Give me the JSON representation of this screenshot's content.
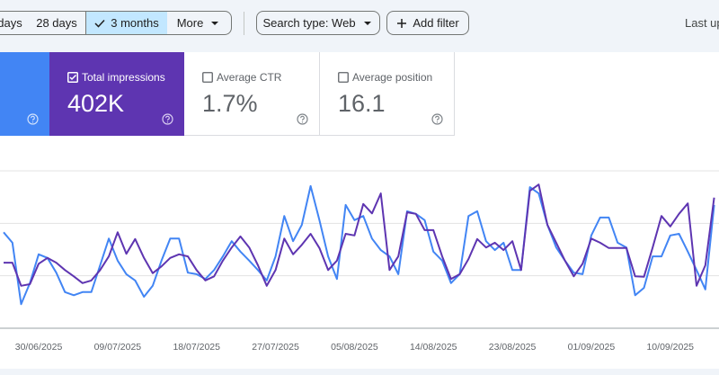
{
  "toolbar": {
    "date_buttons": [
      "days",
      "28 days",
      "3 months",
      "More"
    ],
    "search_type": "Search type: Web",
    "add_filter": "Add filter",
    "last_updated": "Last up"
  },
  "metrics": [
    {
      "label": "Total impressions",
      "value": "402K"
    },
    {
      "label": "Average CTR",
      "value": "1.7%"
    },
    {
      "label": "Average position",
      "value": "16.1"
    }
  ],
  "chart_data": {
    "type": "line",
    "categories": [
      null,
      null,
      null,
      null,
      "30/06/2025",
      null,
      null,
      null,
      null,
      null,
      null,
      null,
      null,
      "09/07/2025",
      null,
      null,
      null,
      null,
      null,
      null,
      null,
      null,
      "18/07/2025",
      null,
      null,
      null,
      null,
      null,
      null,
      null,
      null,
      "27/07/2025",
      null,
      null,
      null,
      null,
      null,
      null,
      null,
      null,
      "05/08/2025",
      null,
      null,
      null,
      null,
      null,
      null,
      null,
      null,
      "14/08/2025",
      null,
      null,
      null,
      null,
      null,
      null,
      null,
      null,
      "23/08/2025",
      null,
      null,
      null,
      null,
      null,
      null,
      null,
      null,
      "01/09/2025",
      null,
      null,
      null,
      null,
      null,
      null,
      null,
      null,
      "10/09/2025",
      null,
      null,
      null,
      null,
      null
    ],
    "series": [
      {
        "color": "#4285f4",
        "values": [
          1.83,
          1.63,
          0.46,
          0.86,
          1.41,
          1.34,
          1.06,
          0.69,
          0.63,
          0.69,
          0.69,
          1.2,
          1.71,
          1.29,
          1.03,
          0.91,
          0.6,
          0.81,
          1.29,
          1.71,
          1.71,
          1.06,
          1.03,
          0.94,
          1.11,
          1.37,
          1.66,
          1.46,
          1.29,
          1.11,
          0.91,
          1.37,
          2.14,
          1.66,
          1.97,
          2.71,
          2.06,
          1.37,
          0.94,
          2.35,
          2.06,
          2.14,
          1.71,
          1.49,
          1.37,
          1.03,
          2.23,
          2.18,
          2.06,
          1.46,
          1.29,
          0.86,
          1.03,
          2.14,
          2.23,
          1.66,
          1.49,
          1.63,
          1.11,
          1.11,
          2.69,
          2.57,
          1.97,
          1.54,
          1.29,
          1.06,
          1.03,
          1.77,
          2.11,
          2.11,
          1.63,
          1.54,
          0.63,
          0.77,
          1.37,
          1.37,
          1.77,
          1.8,
          1.46,
          1.11,
          0.74,
          2.35
        ]
      },
      {
        "name": "Total impressions",
        "color": "#5e35b1",
        "values": [
          1.25,
          1.25,
          0.81,
          0.84,
          1.23,
          1.34,
          1.25,
          1.11,
          0.99,
          0.86,
          0.91,
          1.11,
          1.37,
          1.83,
          1.42,
          1.7,
          1.34,
          1.05,
          1.18,
          1.34,
          1.41,
          1.37,
          1.11,
          0.91,
          0.99,
          1.29,
          1.54,
          1.75,
          1.54,
          1.2,
          0.81,
          1.11,
          1.71,
          1.41,
          1.59,
          1.8,
          1.53,
          1.11,
          1.29,
          1.8,
          1.77,
          2.37,
          2.19,
          2.57,
          1.11,
          1.37,
          2.21,
          2.18,
          1.87,
          1.87,
          1.37,
          0.94,
          1.03,
          1.32,
          1.7,
          1.54,
          1.63,
          1.49,
          1.66,
          1.11,
          2.62,
          2.74,
          1.97,
          1.63,
          1.29,
          0.99,
          1.23,
          1.71,
          1.63,
          1.53,
          1.53,
          1.53,
          0.99,
          0.98,
          1.54,
          2.14,
          1.94,
          2.18,
          2.38,
          0.81,
          1.2,
          2.49
        ]
      }
    ],
    "ylim": [
      0,
      3
    ],
    "yticks": [
      0,
      1,
      2,
      3
    ],
    "grid": true
  }
}
